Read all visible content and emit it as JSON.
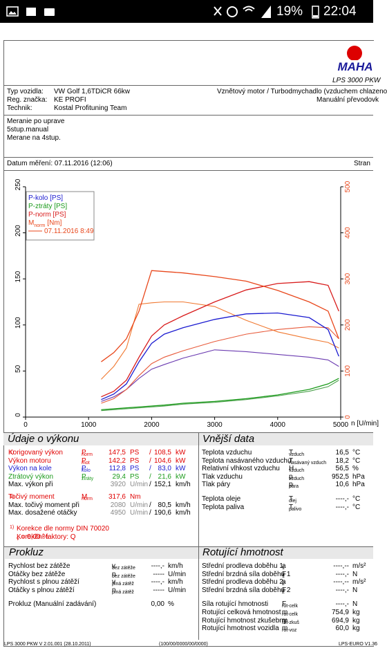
{
  "status": {
    "battery": "19%",
    "time": "22:04"
  },
  "header": {
    "brand": "MAHA",
    "product": "LPS 3000 PKW"
  },
  "vehicle": {
    "rows": [
      [
        "Typ vozidla:",
        "VW Golf 1,6TDiCR 66kw"
      ],
      [
        "Reg. značka:",
        "KE PROFI"
      ],
      [
        "Technik:",
        "Kostal Profituning Team"
      ]
    ],
    "right": [
      "Vznětový motor / Turbodmychadlo (vzduchem chlazeno",
      "Manuální převodovk"
    ]
  },
  "notes": [
    "Meranie po uprave",
    "5stup.manual",
    "Merane na 4stup."
  ],
  "date": {
    "label": "Datum měření: 07.11.2016 (12:06)",
    "right": "Stran"
  },
  "chart_data": {
    "type": "line",
    "x_label": "n [U/min]",
    "x": [
      1200,
      1400,
      1600,
      1800,
      2000,
      2200,
      2500,
      3000,
      3500,
      4000,
      4500,
      4800,
      4970
    ],
    "xlim": [
      0,
      5000
    ],
    "xticks": [
      0,
      1000,
      2000,
      3000,
      4000,
      5000
    ],
    "ylim": [
      0,
      250
    ],
    "yticks": [
      0,
      50,
      100,
      150,
      200,
      250
    ],
    "y2lim": [
      0,
      500
    ],
    "y2ticks": [
      0,
      100,
      200,
      300,
      400,
      500
    ],
    "y_tick_color": "#000000",
    "y2_tick_color": "#e8461a",
    "series": [
      {
        "name": "P-kolo [PS]",
        "color": "#1a1ad0",
        "values": [
          19,
          25,
          36,
          60,
          80,
          90,
          97,
          106,
          112,
          113,
          108,
          95,
          66
        ]
      },
      {
        "name": "P-ztráty [PS]",
        "color": "#1a9a1a",
        "values": [
          8,
          9,
          10,
          11,
          12,
          13,
          15,
          17,
          20,
          24,
          30,
          36,
          42
        ]
      },
      {
        "name": "P-norm [PS]",
        "color": "#d81a1a",
        "values": [
          22,
          28,
          40,
          65,
          88,
          100,
          110,
          125,
          138,
          145,
          147,
          143,
          115
        ]
      },
      {
        "name": "M",
        "name_sub": "norm",
        "unit": "[Nm]",
        "color": "#e8461a",
        "axis": "y2",
        "values": [
          120,
          140,
          170,
          230,
          318,
          316,
          313,
          305,
          295,
          275,
          250,
          230,
          170
        ]
      }
    ],
    "comparison": {
      "name": "07.11.2016 8:49",
      "color": "#e8461a",
      "series": [
        {
          "color": "#6a3ab0",
          "values": [
            17,
            22,
            30,
            42,
            52,
            57,
            64,
            73,
            71,
            68,
            65,
            62,
            55
          ]
        },
        {
          "color": "#4aa04a",
          "values": [
            7,
            8,
            9,
            10,
            11,
            12,
            14,
            16,
            19,
            23,
            28,
            33,
            40
          ]
        },
        {
          "color": "#e85a3a",
          "values": [
            15,
            20,
            30,
            45,
            58,
            65,
            72,
            82,
            90,
            95,
            98,
            97,
            85
          ]
        },
        {
          "color": "#f07830",
          "axis": "y2",
          "values": [
            82,
            110,
            150,
            245,
            248,
            250,
            250,
            240,
            210,
            185,
            170,
            162,
            150
          ]
        }
      ]
    }
  },
  "performance": {
    "title": "Údaje o výkonu",
    "rows": [
      {
        "label": "Korigovaný výkon",
        "note": "1)",
        "sym": "P",
        "sub": "norm",
        "v1": "147,5",
        "u1": "PS",
        "sep": "/",
        "v2": "108,5",
        "u2": "kW",
        "color": "#e00000"
      },
      {
        "label": "Výkon motoru",
        "sym": "P",
        "sub": "mot",
        "v1": "142,2",
        "u1": "PS",
        "sep": "/",
        "v2": "104,6",
        "u2": "kW",
        "color": "#e00000"
      },
      {
        "label": "Výkon na kole",
        "sym": "P",
        "sub": "kolo",
        "v1": "112,8",
        "u1": "PS",
        "sep": "/",
        "v2": "83,0",
        "u2": "kW",
        "color": "#1a1ad0"
      },
      {
        "label": "Ztrátový výkon",
        "sym": "P",
        "sub": "ztráty",
        "v1": "29,4",
        "u1": "PS",
        "sep": "/",
        "v2": "21,6",
        "u2": "kW",
        "color": "#1a9a1a"
      },
      {
        "label": "Max. výkon při",
        "v1": "3920",
        "u1": "U/min",
        "sep": "/",
        "v2": "152,1",
        "u2": "km/h",
        "color": "#000000",
        "v1_color": "#888888"
      },
      {
        "label": "Točivý moment",
        "note": "1)",
        "sym": "M",
        "sub": "norm",
        "v1": "317,6",
        "u1": "Nm",
        "color": "#e00000"
      },
      {
        "label": "Max. točivý moment při",
        "v1": "2080",
        "u1": "U/min",
        "sep": "/",
        "v2": "80,5",
        "u2": "km/h",
        "color": "#000000",
        "v1_color": "#888888"
      },
      {
        "label": "Max. dosažené otáčky",
        "v1": "4950",
        "u1": "U/min",
        "sep": "/",
        "v2": "190,6",
        "u2": "km/h",
        "color": "#000000",
        "v1_color": "#888888"
      }
    ],
    "footnote": {
      "mark": "1)",
      "text": "Korekce dle normy DIN 70020",
      "factor": "Korekční faktory: Q",
      "factor_sub": "v",
      "factor_value": "= 0,00 %"
    }
  },
  "external": {
    "title": "Vnější data",
    "rows": [
      {
        "label": "Teplota vzduchu",
        "sym": "T",
        "sub": "vzduch",
        "value": "16,5",
        "unit": "°C"
      },
      {
        "label": "Teplota nasávaného vzduchu",
        "sym": "T",
        "sub": "nasávaný vzduch",
        "value": "18,2",
        "unit": "°C"
      },
      {
        "label": "Relativní vlhkost vzduchu",
        "sym": "H",
        "sub": "vzduch",
        "value": "56,5",
        "unit": "%"
      },
      {
        "label": "Tlak vzduchu",
        "sym": "p",
        "sub": "vzduch",
        "value": "952,5",
        "unit": "hPa"
      },
      {
        "label": "Tlak páry",
        "sym": "p",
        "sub": "pára",
        "value": "10,6",
        "unit": "hPa"
      },
      {
        "label": "Teplota oleje",
        "sym": "T",
        "sub": "olej",
        "value": "----,-",
        "unit": "°C"
      },
      {
        "label": "Teplota paliva",
        "sym": "T",
        "sub": "palivo",
        "value": "----,-",
        "unit": "°C"
      }
    ]
  },
  "slip": {
    "title": "Prokluz",
    "rows": [
      {
        "label": "Rychlost bez zátěže",
        "sym": "v",
        "sub": "bez zátěže",
        "value": "----,-",
        "unit": "km/h"
      },
      {
        "label": "Otáčky bez zátěže",
        "sym": "n",
        "sub": "bez zátěže",
        "value": "-----",
        "unit": "U/min"
      },
      {
        "label": "Rychlost s plnou zátěží",
        "sym": "v",
        "sub": "plná zátěž",
        "value": "----,-",
        "unit": "km/h"
      },
      {
        "label": "Otáčky s plnou zátěží",
        "sym": "n",
        "sub": "plná zátěž",
        "value": "-----",
        "unit": "U/min"
      },
      {
        "label": "Prokluz (Manuální zadávání)",
        "value": "0,00",
        "unit": "%"
      }
    ]
  },
  "rotating": {
    "title": "Rotující hmotnost",
    "rows": [
      {
        "label": "Střední prodleva doběhu 1",
        "sym": "a",
        "sub": "1",
        "value": "----,--",
        "unit": "m/s²"
      },
      {
        "label": "Střední brzdná síla doběhu 1",
        "sym": "F",
        "sub": "1",
        "value": "----,-",
        "unit": "N"
      },
      {
        "label": "Střední prodleva doběhu 2",
        "sym": "a",
        "sub": "2",
        "value": "----,--",
        "unit": "m/s²"
      },
      {
        "label": "Střední brzdná síla doběhu 2",
        "sym": "F",
        "sub": "2",
        "value": "----,-",
        "unit": "N"
      },
      {
        "label": "Síla rotující hmotnosti",
        "sym": "F",
        "sub": "rot-celk",
        "value": "----,-",
        "unit": "N"
      },
      {
        "label": "Rotující celková hmotnost",
        "sym": "m",
        "sub": "rot-celk",
        "value": "754,9",
        "unit": "kg"
      },
      {
        "label": "Rotující hmotnost zkušebny",
        "sym": "m",
        "sub": "rot-zkuš",
        "value": "694,9",
        "unit": "kg"
      },
      {
        "label": "Rotující hmotnost vozidla",
        "sym": "m",
        "sub": "rot-voz",
        "value": "60,0",
        "unit": "kg"
      }
    ]
  },
  "footer": [
    "LPS 3000 PKW V 2.01.001 (28.10.2011)",
    "(100/00/0000/00/0000)",
    "LPS-EURO V1.36"
  ]
}
